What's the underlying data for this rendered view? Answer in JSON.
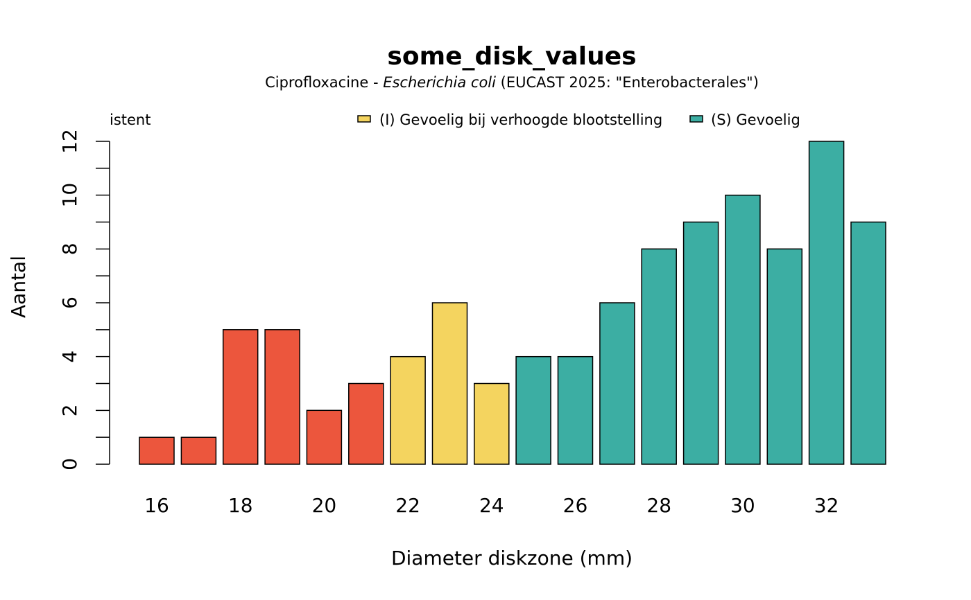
{
  "chart_data": {
    "type": "bar",
    "title": "some_disk_values",
    "subtitle": {
      "drug": "Ciprofloxacine",
      "separator": " - ",
      "organism": "Escherichia coli",
      "guideline": " (EUCAST 2025: \"Enterobacterales\")"
    },
    "xlabel": "Diameter diskzone (mm)",
    "ylabel": "Aantal",
    "ylim": [
      0,
      12
    ],
    "y_ticks": [
      0,
      2,
      4,
      6,
      8,
      10,
      12
    ],
    "x_tick_labels": [
      "16",
      "18",
      "20",
      "22",
      "24",
      "26",
      "28",
      "30",
      "32"
    ],
    "categories": [
      16,
      17,
      18,
      19,
      20,
      21,
      22,
      23,
      24,
      25,
      26,
      27,
      28,
      29,
      30,
      31,
      32,
      33
    ],
    "values": [
      1,
      1,
      5,
      5,
      2,
      3,
      4,
      6,
      3,
      4,
      4,
      6,
      8,
      9,
      10,
      8,
      12,
      9
    ],
    "interpretation": [
      "R",
      "R",
      "R",
      "R",
      "R",
      "R",
      "I",
      "I",
      "I",
      "S",
      "S",
      "S",
      "S",
      "S",
      "S",
      "S",
      "S",
      "S"
    ],
    "legend": {
      "placement": "top",
      "entries": [
        {
          "key": "R",
          "label": "(R) Resistent",
          "visible_text": "istent",
          "color": "#EC563D"
        },
        {
          "key": "I",
          "label": "(I) Gevoelig bij verhoogde blootstelling",
          "visible_text": "(I) Gevoelig bij verhoogde blootstelling",
          "color": "#F4D45F"
        },
        {
          "key": "S",
          "label": "(S) Gevoelig",
          "visible_text": "(S) Gevoelig",
          "color": "#3CAEA3"
        }
      ]
    },
    "grid": false
  }
}
